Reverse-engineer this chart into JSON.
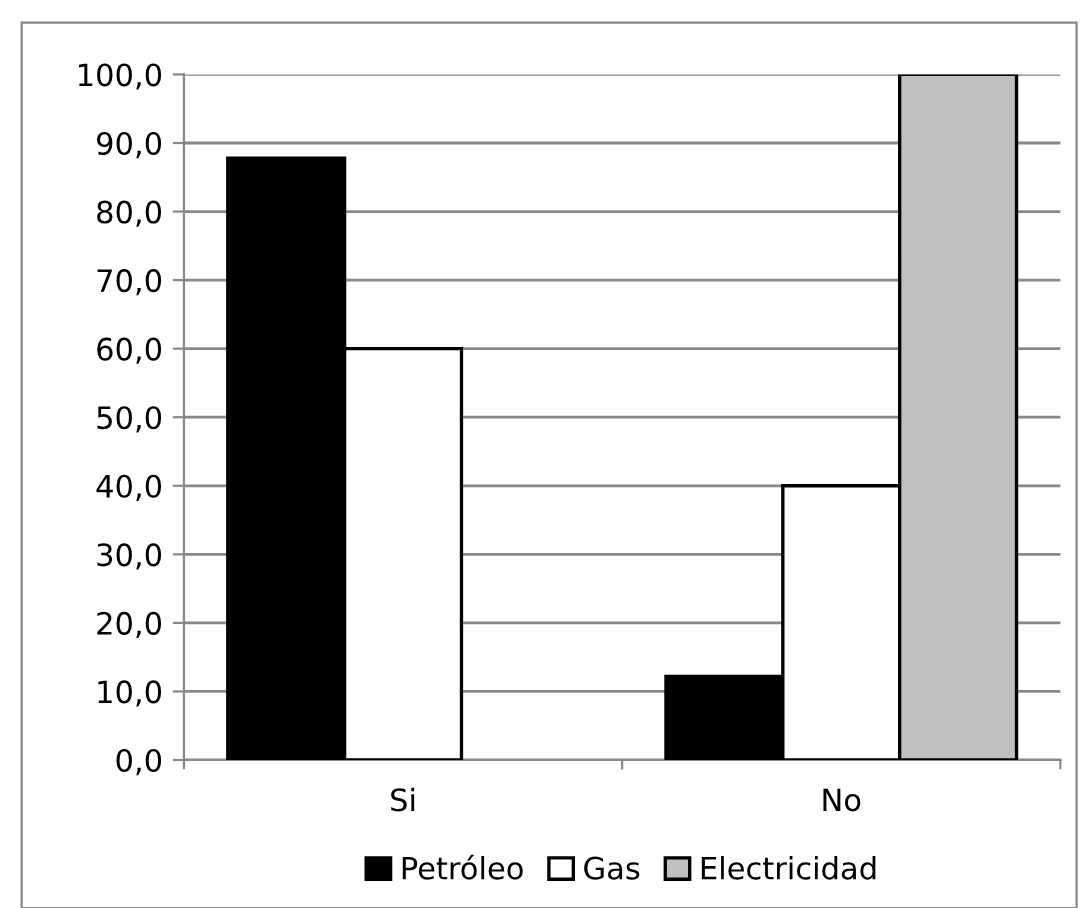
{
  "chart_data": {
    "type": "bar",
    "categories": [
      "Si",
      "No"
    ],
    "series": [
      {
        "name": "Petróleo",
        "color": "#000000",
        "values": [
          87.8,
          12.2
        ]
      },
      {
        "name": "Gas",
        "color": "#ffffff",
        "values": [
          60.0,
          40.0
        ]
      },
      {
        "name": "Electricidad",
        "color": "#c0c0c0",
        "values": [
          null,
          100.0
        ]
      }
    ],
    "ylim": [
      0,
      100
    ],
    "yticks": [
      {
        "value": 0,
        "label": "0,0"
      },
      {
        "value": 10,
        "label": "10,0"
      },
      {
        "value": 20,
        "label": "20,0"
      },
      {
        "value": 30,
        "label": "30,0"
      },
      {
        "value": 40,
        "label": "40,0"
      },
      {
        "value": 50,
        "label": "50,0"
      },
      {
        "value": 60,
        "label": "60,0"
      },
      {
        "value": 70,
        "label": "70,0"
      },
      {
        "value": 80,
        "label": "80,0"
      },
      {
        "value": 90,
        "label": "90,0"
      },
      {
        "value": 100,
        "label": "100,0"
      }
    ],
    "grid": "y",
    "legend": "bottom"
  }
}
